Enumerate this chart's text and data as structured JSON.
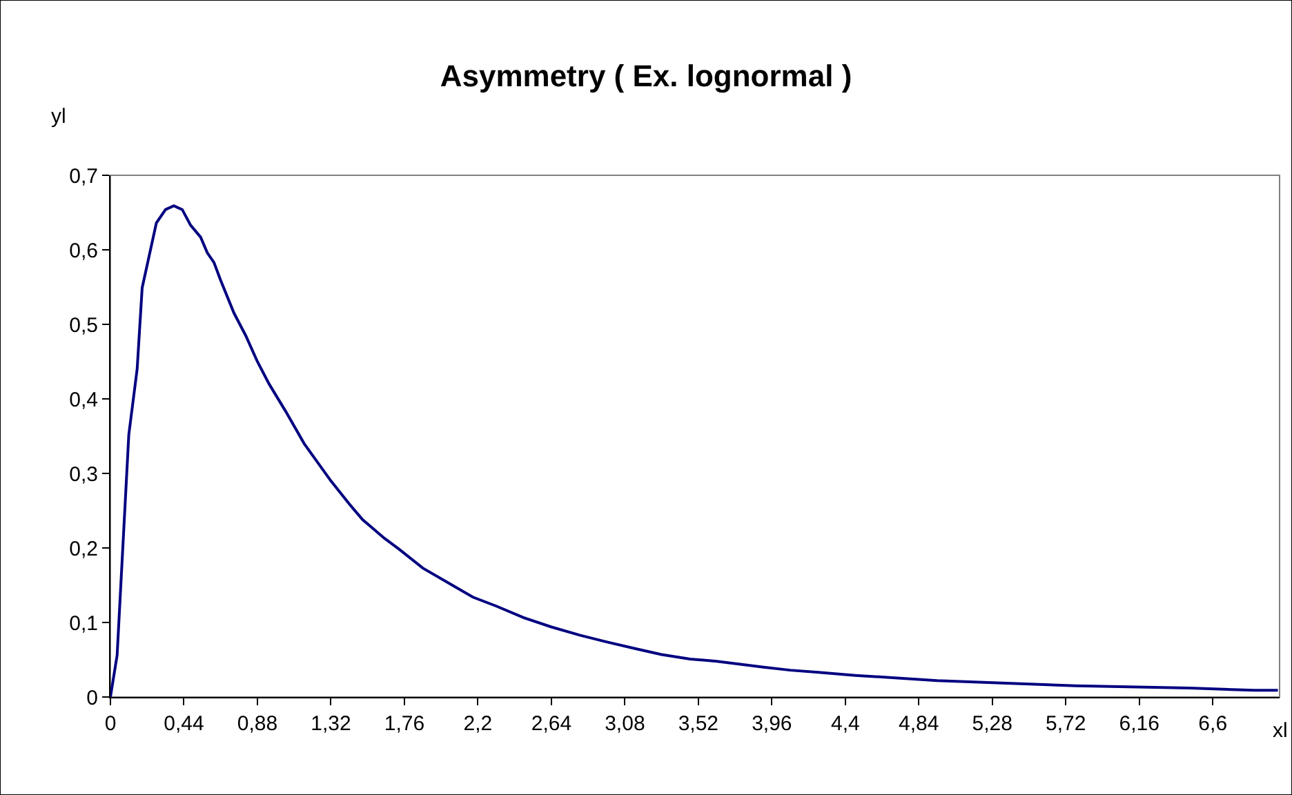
{
  "chart_data": {
    "type": "line",
    "title": "Asymmetry ( Ex. lognormal )",
    "xlabel": "xl",
    "ylabel": "yl",
    "x": [
      0,
      0.04,
      0.11,
      0.16,
      0.19,
      0.275,
      0.33,
      0.38,
      0.43,
      0.48,
      0.54,
      0.58,
      0.62,
      0.66,
      0.74,
      0.81,
      0.88,
      0.95,
      1.05,
      1.16,
      1.24,
      1.32,
      1.43,
      1.51,
      1.64,
      1.73,
      1.87,
      2.04,
      2.17,
      2.31,
      2.48,
      2.64,
      2.81,
      2.97,
      3.14,
      3.3,
      3.47,
      3.63,
      3.77,
      3.91,
      4.07,
      4.24,
      4.46,
      4.68,
      4.95,
      5.31,
      5.78,
      6.46,
      6.85,
      6.99
    ],
    "series": [
      {
        "color": "#000080",
        "values": [
          0,
          0.056,
          0.352,
          0.44,
          0.549,
          0.636,
          0.654,
          0.659,
          0.654,
          0.633,
          0.617,
          0.596,
          0.583,
          0.559,
          0.515,
          0.485,
          0.45,
          0.42,
          0.383,
          0.34,
          0.315,
          0.29,
          0.259,
          0.238,
          0.213,
          0.198,
          0.173,
          0.151,
          0.134,
          0.122,
          0.106,
          0.094,
          0.083,
          0.074,
          0.065,
          0.057,
          0.051,
          0.048,
          0.044,
          0.04,
          0.036,
          0.033,
          0.029,
          0.026,
          0.022,
          0.019,
          0.015,
          0.012,
          0.009,
          0.009
        ]
      }
    ],
    "xlim": [
      0,
      7.0
    ],
    "xticks": [
      0,
      {
        "value": 0.44,
        "label": "0,44"
      },
      {
        "value": 0.88,
        "label": "0,88"
      },
      {
        "value": 1.32,
        "label": "1,32"
      },
      {
        "value": 1.76,
        "label": "1,76"
      },
      {
        "value": 2.2,
        "label": "2,2"
      },
      {
        "value": 2.64,
        "label": "2,64"
      },
      {
        "value": 3.08,
        "label": "3,08"
      },
      {
        "value": 3.52,
        "label": "3,52"
      },
      {
        "value": 3.96,
        "label": "3,96"
      },
      {
        "value": 4.4,
        "label": "4,4"
      },
      {
        "value": 4.84,
        "label": "4,84"
      },
      {
        "value": 5.28,
        "label": "5,28"
      },
      {
        "value": 5.72,
        "label": "5,72"
      },
      {
        "value": 6.16,
        "label": "6,16"
      },
      {
        "value": 6.6,
        "label": "6,6"
      }
    ],
    "ylim": [
      0,
      0.7
    ],
    "yticks": [
      0,
      {
        "value": 0.1,
        "label": "0,1"
      },
      {
        "value": 0.2,
        "label": "0,2"
      },
      {
        "value": 0.3,
        "label": "0,3"
      },
      {
        "value": 0.4,
        "label": "0,4"
      },
      {
        "value": 0.5,
        "label": "0,5"
      },
      {
        "value": 0.6,
        "label": "0,6"
      },
      {
        "value": 0.7,
        "label": "0,7"
      }
    ],
    "marker": "none",
    "line_style": "solid"
  }
}
